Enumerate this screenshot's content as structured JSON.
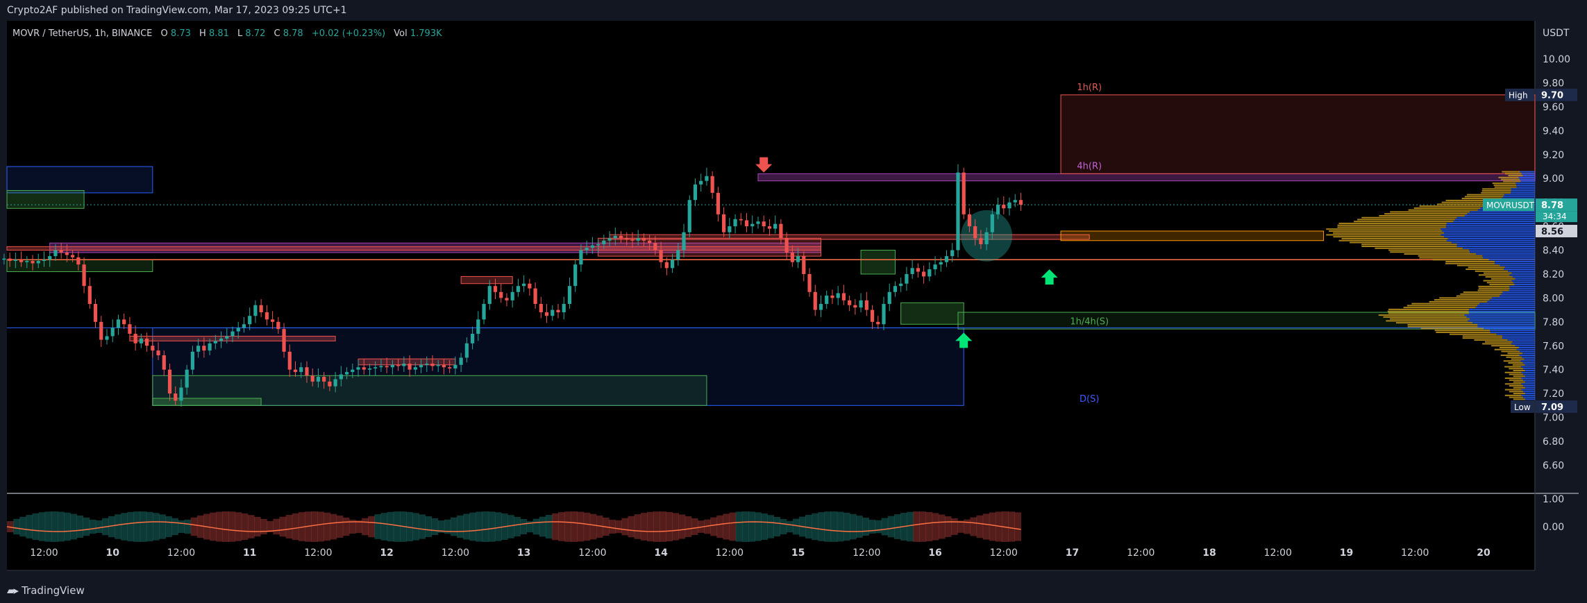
{
  "header": {
    "published": "Crypto2AF published on TradingView.com, Mar 17, 2023 09:25 UTC+1"
  },
  "footer": {
    "brand": "TradingView"
  },
  "legend": {
    "symbol": "MOVR / TetherUS, 1h, BINANCE",
    "o_label": "O",
    "o": "8.73",
    "h_label": "H",
    "h": "8.81",
    "l_label": "L",
    "l": "8.72",
    "c_label": "C",
    "c": "8.78",
    "change": "+0.02 (+0.23%)",
    "vol_label": "Vol",
    "vol": "1.793K"
  },
  "colors": {
    "bull": "#26a69a",
    "bear": "#ef5350",
    "bg": "#000000",
    "axis_bg": "#131722"
  },
  "chart_data": {
    "type": "candlestick",
    "title": "",
    "y_unit": "USDT",
    "y_ticks": [
      "10.00",
      "9.80",
      "9.60",
      "9.40",
      "9.20",
      "9.00",
      "8.80",
      "8.60",
      "8.40",
      "8.20",
      "8.00",
      "7.80",
      "7.60",
      "7.40",
      "7.20",
      "7.00",
      "6.80",
      "6.60"
    ],
    "y_tick_values": [
      10.0,
      9.8,
      9.6,
      9.4,
      9.2,
      9.0,
      8.8,
      8.6,
      8.4,
      8.2,
      8.0,
      7.8,
      7.6,
      7.4,
      7.2,
      7.0,
      6.8,
      6.6
    ],
    "ylim": [
      6.37,
      10.32
    ],
    "x_ticks": [
      "12:00",
      "10",
      "12:00",
      "11",
      "12:00",
      "12",
      "12:00",
      "13",
      "12:00",
      "14",
      "12:00",
      "15",
      "12:00",
      "16",
      "12:00",
      "17",
      "12:00",
      "18",
      "12:00",
      "19",
      "12:00",
      "20"
    ],
    "x_tick_hours": [
      12,
      24,
      36,
      48,
      60,
      72,
      84,
      96,
      108,
      120,
      132,
      144,
      156,
      168,
      180,
      192,
      204,
      216,
      228,
      240,
      252,
      264
    ],
    "x_start": "Mar 9 05:00",
    "xlim_hours": [
      5.5,
      273
    ],
    "price_labels": [
      {
        "label": "High",
        "value": "9.70"
      },
      {
        "label": "MOVRUSDT",
        "value": "8.78",
        "countdown": "34:34"
      },
      {
        "label": "",
        "value": "8.56"
      },
      {
        "label": "Low",
        "value": "7.09"
      }
    ],
    "zone_labels": [
      {
        "text": "1h(R)",
        "price": 9.74,
        "color": "#e05a5a"
      },
      {
        "text": "4h(R)",
        "price": 9.08,
        "color": "#c064d8"
      },
      {
        "text": "1h/4h(S)",
        "price": 7.78,
        "color": "#4caf50"
      },
      {
        "text": "D(S)",
        "price": 7.13,
        "color": "#3d5afe"
      }
    ],
    "arrows": [
      {
        "dir": "down",
        "hour": 138,
        "price": 9.05,
        "color": "#ef5350"
      },
      {
        "dir": "up",
        "hour": 173,
        "price": 7.71,
        "color": "#00e676"
      },
      {
        "dir": "up",
        "hour": 188,
        "price": 8.24,
        "color": "#00e676"
      }
    ],
    "series": [
      {
        "name": "",
        "points": [
          [
            0,
            8.33
          ],
          [
            1,
            8.31
          ],
          [
            2,
            8.32
          ],
          [
            3,
            8.3
          ],
          [
            4,
            8.31
          ],
          [
            5,
            8.29
          ],
          [
            6,
            8.31
          ],
          [
            7,
            8.32
          ],
          [
            8,
            8.35
          ],
          [
            9,
            8.4
          ],
          [
            10,
            8.38
          ],
          [
            11,
            8.36
          ],
          [
            12,
            8.34
          ],
          [
            13,
            8.28
          ],
          [
            14,
            8.1
          ],
          [
            15,
            7.95
          ],
          [
            16,
            7.8
          ],
          [
            17,
            7.65
          ],
          [
            18,
            7.68
          ],
          [
            19,
            7.75
          ],
          [
            20,
            7.82
          ],
          [
            21,
            7.78
          ],
          [
            22,
            7.7
          ],
          [
            23,
            7.62
          ],
          [
            24,
            7.66
          ],
          [
            25,
            7.6
          ],
          [
            26,
            7.56
          ],
          [
            27,
            7.52
          ],
          [
            28,
            7.4
          ],
          [
            29,
            7.2
          ],
          [
            30,
            7.14
          ],
          [
            31,
            7.25
          ],
          [
            32,
            7.4
          ],
          [
            33,
            7.55
          ],
          [
            34,
            7.6
          ],
          [
            35,
            7.56
          ],
          [
            36,
            7.62
          ],
          [
            37,
            7.64
          ],
          [
            38,
            7.66
          ],
          [
            39,
            7.68
          ],
          [
            40,
            7.72
          ],
          [
            41,
            7.75
          ],
          [
            42,
            7.78
          ],
          [
            43,
            7.85
          ],
          [
            44,
            7.94
          ],
          [
            45,
            7.88
          ],
          [
            46,
            7.82
          ],
          [
            47,
            7.8
          ],
          [
            48,
            7.74
          ],
          [
            49,
            7.55
          ],
          [
            50,
            7.4
          ],
          [
            51,
            7.38
          ],
          [
            52,
            7.42
          ],
          [
            53,
            7.35
          ],
          [
            54,
            7.3
          ],
          [
            55,
            7.34
          ],
          [
            56,
            7.3
          ],
          [
            57,
            7.26
          ],
          [
            58,
            7.32
          ],
          [
            59,
            7.36
          ],
          [
            60,
            7.38
          ],
          [
            61,
            7.4
          ],
          [
            62,
            7.42
          ],
          [
            63,
            7.4
          ],
          [
            64,
            7.41
          ],
          [
            65,
            7.42
          ],
          [
            66,
            7.43
          ],
          [
            67,
            7.42
          ],
          [
            68,
            7.44
          ],
          [
            69,
            7.43
          ],
          [
            70,
            7.45
          ],
          [
            71,
            7.4
          ],
          [
            72,
            7.42
          ],
          [
            73,
            7.44
          ],
          [
            74,
            7.45
          ],
          [
            75,
            7.43
          ],
          [
            76,
            7.44
          ],
          [
            77,
            7.42
          ],
          [
            78,
            7.41
          ],
          [
            79,
            7.44
          ],
          [
            80,
            7.5
          ],
          [
            81,
            7.62
          ],
          [
            82,
            7.7
          ],
          [
            83,
            7.82
          ],
          [
            84,
            7.95
          ],
          [
            85,
            8.1
          ],
          [
            86,
            8.05
          ],
          [
            87,
            8.0
          ],
          [
            88,
            7.98
          ],
          [
            89,
            8.05
          ],
          [
            90,
            8.1
          ],
          [
            91,
            8.12
          ],
          [
            92,
            8.08
          ],
          [
            93,
            7.95
          ],
          [
            94,
            7.88
          ],
          [
            95,
            7.85
          ],
          [
            96,
            7.9
          ],
          [
            97,
            7.88
          ],
          [
            98,
            7.95
          ],
          [
            99,
            8.1
          ],
          [
            100,
            8.28
          ],
          [
            101,
            8.4
          ],
          [
            102,
            8.42
          ],
          [
            103,
            8.44
          ],
          [
            104,
            8.45
          ],
          [
            105,
            8.48
          ],
          [
            106,
            8.5
          ],
          [
            107,
            8.52
          ],
          [
            108,
            8.5
          ],
          [
            109,
            8.49
          ],
          [
            110,
            8.48
          ],
          [
            111,
            8.5
          ],
          [
            112,
            8.48
          ],
          [
            113,
            8.46
          ],
          [
            114,
            8.4
          ],
          [
            115,
            8.3
          ],
          [
            116,
            8.25
          ],
          [
            117,
            8.32
          ],
          [
            118,
            8.4
          ],
          [
            119,
            8.55
          ],
          [
            120,
            8.82
          ],
          [
            121,
            8.95
          ],
          [
            122,
            8.98
          ],
          [
            123,
            9.02
          ],
          [
            124,
            8.88
          ],
          [
            125,
            8.7
          ],
          [
            126,
            8.55
          ],
          [
            127,
            8.6
          ],
          [
            128,
            8.66
          ],
          [
            129,
            8.65
          ],
          [
            130,
            8.6
          ],
          [
            131,
            8.62
          ],
          [
            132,
            8.64
          ],
          [
            133,
            8.6
          ],
          [
            134,
            8.58
          ],
          [
            135,
            8.62
          ],
          [
            136,
            8.5
          ],
          [
            137,
            8.38
          ],
          [
            138,
            8.3
          ],
          [
            139,
            8.35
          ],
          [
            140,
            8.2
          ],
          [
            141,
            8.05
          ],
          [
            142,
            7.9
          ],
          [
            143,
            7.95
          ],
          [
            144,
            8.02
          ],
          [
            145,
            8.0
          ],
          [
            146,
            8.04
          ],
          [
            147,
            7.98
          ],
          [
            148,
            7.94
          ],
          [
            149,
            7.92
          ],
          [
            150,
            7.98
          ],
          [
            151,
            7.9
          ],
          [
            152,
            7.8
          ],
          [
            153,
            7.78
          ],
          [
            154,
            7.95
          ],
          [
            155,
            8.05
          ],
          [
            156,
            8.1
          ],
          [
            157,
            8.12
          ],
          [
            158,
            8.2
          ],
          [
            159,
            8.25
          ],
          [
            160,
            8.22
          ],
          [
            161,
            8.18
          ],
          [
            162,
            8.24
          ],
          [
            163,
            8.28
          ],
          [
            164,
            8.3
          ],
          [
            165,
            8.35
          ],
          [
            166,
            8.4
          ],
          [
            167,
            9.05
          ],
          [
            168,
            8.7
          ],
          [
            169,
            8.6
          ],
          [
            170,
            8.5
          ],
          [
            171,
            8.45
          ],
          [
            172,
            8.55
          ],
          [
            173,
            8.7
          ],
          [
            174,
            8.78
          ],
          [
            175,
            8.75
          ],
          [
            176,
            8.8
          ],
          [
            177,
            8.82
          ],
          [
            178,
            8.78
          ]
        ]
      }
    ],
    "indicator_ticks": [
      "1.00",
      "0.00"
    ]
  }
}
